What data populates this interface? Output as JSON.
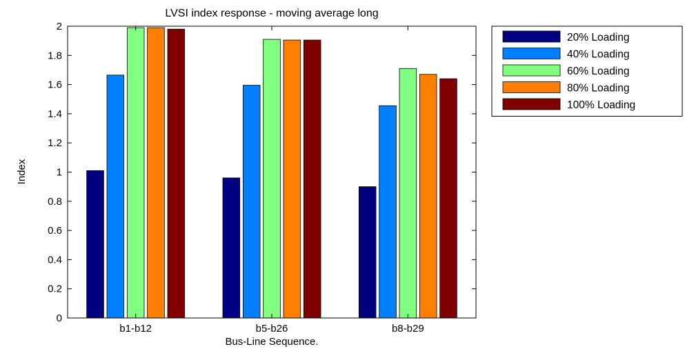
{
  "chart_data": {
    "type": "bar",
    "title": "LVSI index response - moving average long",
    "xlabel": "Bus-Line Sequence.",
    "ylabel": "Index",
    "categories": [
      "b1-b12",
      "b5-b26",
      "b8-b29"
    ],
    "ylim": [
      0,
      2
    ],
    "yticks": [
      "0",
      "0.2",
      "0.4",
      "0.6",
      "0.8",
      "1",
      "1.2",
      "1.4",
      "1.6",
      "1.8",
      "2"
    ],
    "grid": false,
    "legend_position": "outside-top-right",
    "series": [
      {
        "name": "20% Loading",
        "color": "#000080",
        "values": [
          1.01,
          0.96,
          0.9
        ]
      },
      {
        "name": "40% Loading",
        "color": "#0080ff",
        "values": [
          1.665,
          1.595,
          1.455
        ]
      },
      {
        "name": "60% Loading",
        "color": "#80ff80",
        "values": [
          1.99,
          1.91,
          1.71
        ]
      },
      {
        "name": "80% Loading",
        "color": "#ff8000",
        "values": [
          1.99,
          1.905,
          1.67
        ]
      },
      {
        "name": "100% Loading",
        "color": "#800000",
        "values": [
          1.98,
          1.905,
          1.64
        ]
      }
    ]
  }
}
